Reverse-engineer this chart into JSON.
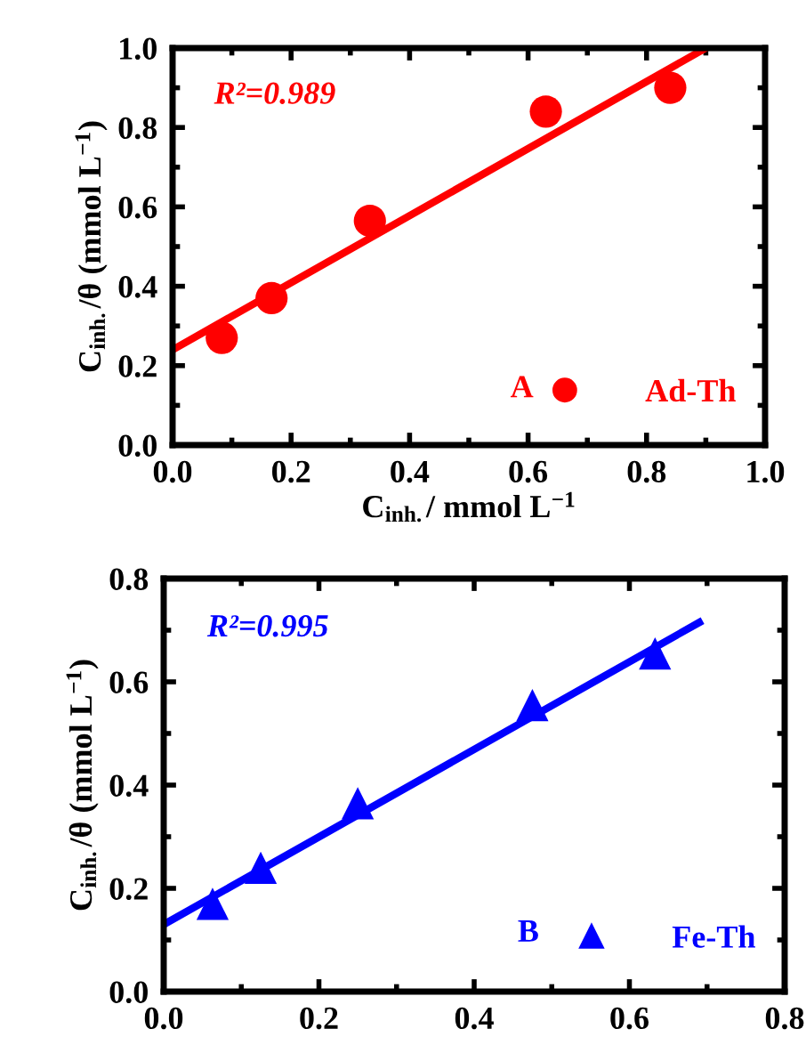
{
  "chart_data": [
    {
      "type": "scatter",
      "xlabel": "C$_{inh.}$/ mmol L$^{−1}$",
      "ylabel": "C$_{inh.}$/θ (mmol L$^{−1}$)",
      "xlim": [
        0,
        1.0
      ],
      "ylim": [
        0,
        1.0
      ],
      "xticks": [
        "0.0",
        0.2,
        0.4,
        0.6,
        0.8,
        "1.0"
      ],
      "yticks": [
        "0.0",
        0.2,
        0.4,
        0.6,
        0.8,
        "1.0"
      ],
      "legend": "bottom right",
      "annotations": [
        "R²=0.989",
        "A"
      ],
      "series": [
        {
          "name": "Ad-Th",
          "color": "#ff0000",
          "marker": "circle",
          "x": [
            0.083,
            0.167,
            0.333,
            0.63,
            0.84
          ],
          "values": [
            0.27,
            0.37,
            0.565,
            0.84,
            0.9
          ]
        },
        {
          "type": "line",
          "color": "#ff0000",
          "x": [
            0,
            0.9
          ],
          "values": [
            0.24,
            1.0
          ]
        }
      ]
    },
    {
      "type": "scatter",
      "ylabel": "C$_{inh.}$/θ (mmol L$^{−1}$)",
      "xlim": [
        0,
        0.8
      ],
      "ylim": [
        0,
        0.8
      ],
      "xticks": [
        "0.0",
        0.2,
        0.4,
        0.6,
        0.8
      ],
      "yticks": [
        "0.0",
        0.2,
        0.4,
        0.6,
        0.8
      ],
      "legend": "bottom right",
      "annotations": [
        "R²=0.995",
        "B"
      ],
      "series": [
        {
          "name": "Fe-Th",
          "color": "#0000ff",
          "marker": "triangle",
          "x": [
            0.063,
            0.125,
            0.25,
            0.475,
            0.633
          ],
          "values": [
            0.17,
            0.24,
            0.365,
            0.555,
            0.655
          ]
        },
        {
          "type": "line",
          "color": "#0000ff",
          "x": [
            0,
            0.69
          ],
          "values": [
            0.13,
            0.715
          ]
        }
      ]
    }
  ]
}
